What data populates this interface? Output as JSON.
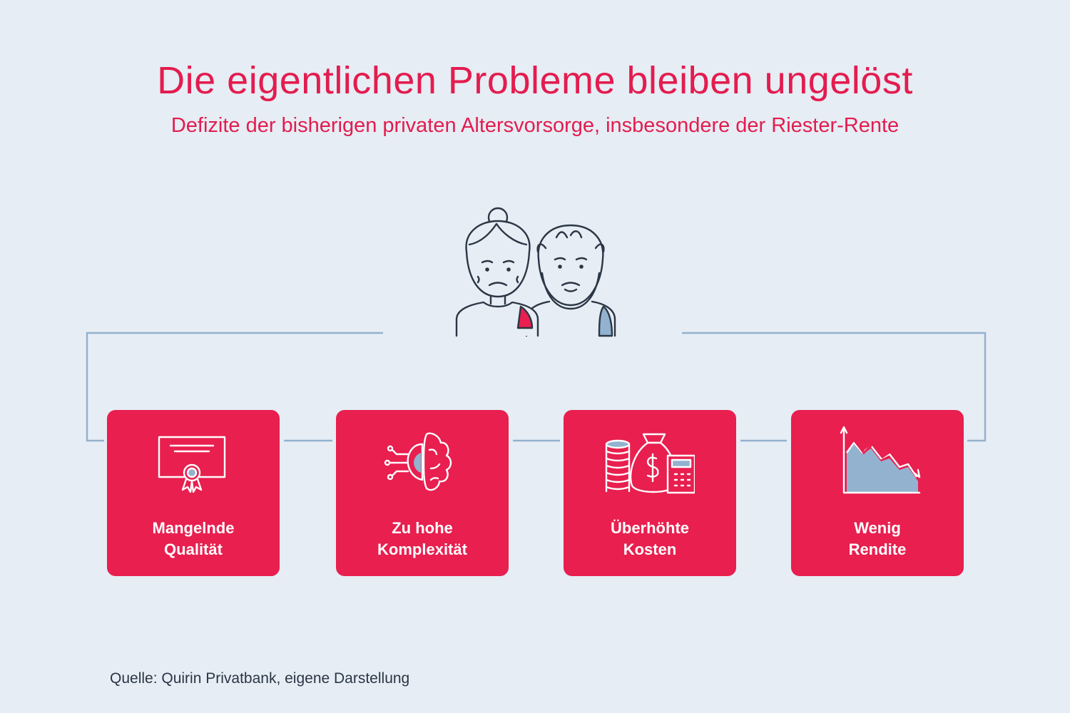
{
  "header": {
    "title": "Die eigentlichen Probleme bleiben ungelöst",
    "subtitle": "Defizite der bisherigen privaten Altersvorsorge, insbesondere der Riester-Rente"
  },
  "illustration": {
    "icon": "elderly-couple-icon"
  },
  "cards": [
    {
      "icon": "certificate-icon",
      "line1": "Mangelnde",
      "line2": "Qualität"
    },
    {
      "icon": "brain-icon",
      "line1": "Zu hohe",
      "line2": "Komplexität"
    },
    {
      "icon": "money-bag-coins-calculator-icon",
      "line1": "Überhöhte",
      "line2": "Kosten"
    },
    {
      "icon": "declining-chart-icon",
      "line1": "Wenig",
      "line2": "Rendite"
    }
  ],
  "footer": {
    "source": "Quelle: Quirin Privatbank, eigene Darstellung"
  },
  "colors": {
    "accent": "#e81f4f",
    "background": "#e6edf4",
    "line": "#93b2cf",
    "outline": "#2b3645"
  }
}
